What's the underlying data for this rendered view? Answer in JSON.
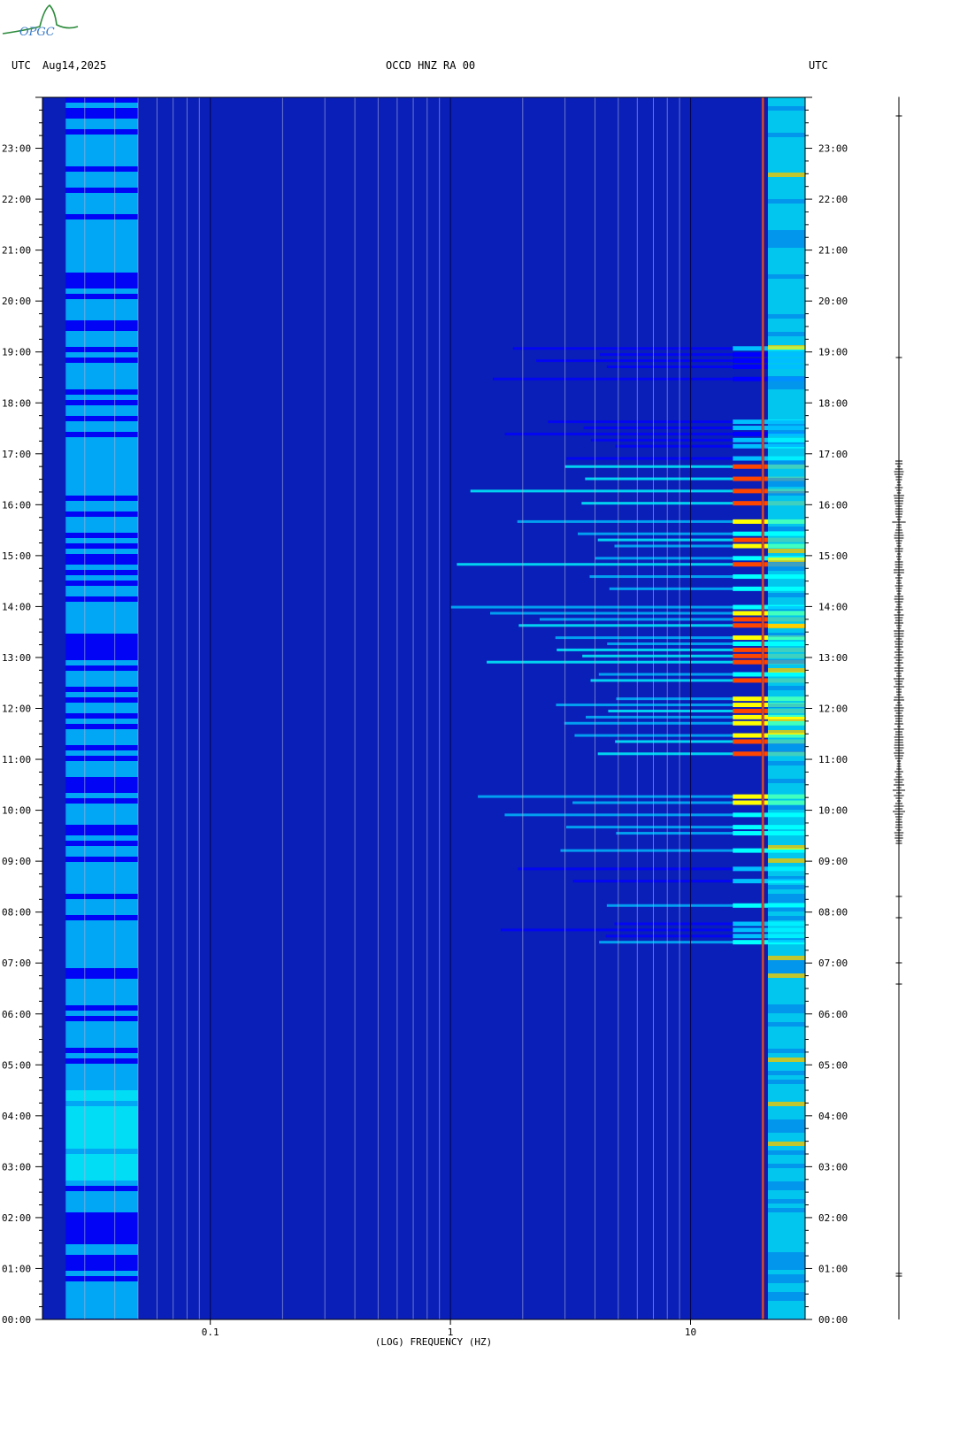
{
  "header": {
    "left_utc": "UTC",
    "date": "Aug14,2025",
    "station": "OCCD HNZ RA 00",
    "right_utc": "UTC"
  },
  "logo": {
    "text": "OPGC",
    "color": "#2a8a3a"
  },
  "chart_data": {
    "type": "heatmap",
    "title": "",
    "xlabel": "(LOG) FREQUENCY (HZ)",
    "ylabel": "",
    "x_scale": "log",
    "x_ticks": [
      {
        "value": 0.1,
        "label": "0.1"
      },
      {
        "value": 1,
        "label": "1"
      },
      {
        "value": 10,
        "label": "10"
      }
    ],
    "y_ticks": [
      "00:00",
      "01:00",
      "02:00",
      "03:00",
      "04:00",
      "05:00",
      "06:00",
      "07:00",
      "08:00",
      "09:00",
      "10:00",
      "11:00",
      "12:00",
      "13:00",
      "14:00",
      "15:00",
      "16:00",
      "17:00",
      "18:00",
      "19:00",
      "20:00",
      "21:00",
      "22:00",
      "23:00"
    ],
    "y_range_hours": [
      0,
      24
    ],
    "colormap": [
      "#00008b",
      "#0000ff",
      "#00bfff",
      "#00ffff",
      "#ffff00",
      "#ff4500",
      "#8b0000"
    ],
    "background_color": "#0a1fb8",
    "active_periods_utc": [
      {
        "start": 9.3,
        "end": 16.9,
        "intensity": "high"
      },
      {
        "start": 7.4,
        "end": 9.3,
        "intensity": "medium"
      },
      {
        "start": 16.9,
        "end": 19.5,
        "intensity": "low"
      }
    ],
    "persistent_line_hz": 20,
    "grid": "on"
  }
}
